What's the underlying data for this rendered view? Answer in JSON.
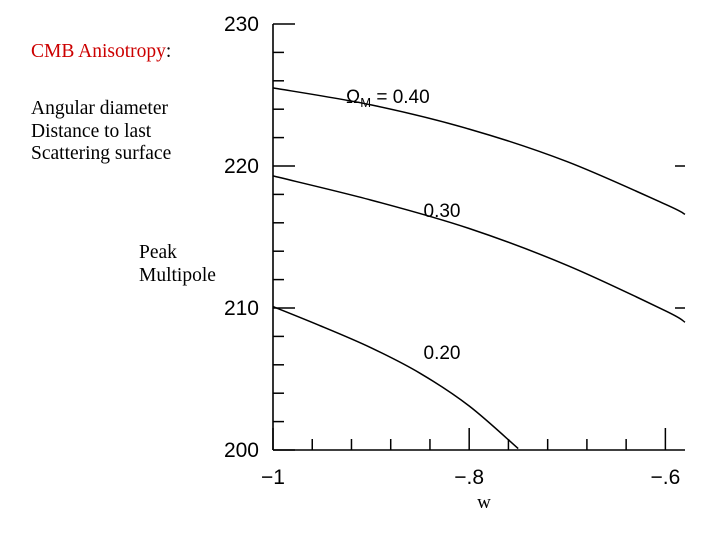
{
  "notes": {
    "cmb_prefix": "CMB Anisotropy",
    "cmb_suffix": ":",
    "angular_lines": [
      "Angular diameter",
      "Distance to last",
      "Scattering surface"
    ],
    "peak_lines": [
      "Peak",
      "Multipole"
    ]
  },
  "colors": {
    "title_red": "#cc0000",
    "ink": "#000000"
  },
  "chart_data": {
    "type": "line",
    "xlabel": "w",
    "ylabel": "",
    "xlim": [
      -1.0,
      -0.58
    ],
    "ylim": [
      200,
      230
    ],
    "x_ticks": [
      -1.0,
      -0.8,
      -0.6
    ],
    "x_tick_labels": [
      "−1",
      "−.8",
      "−.6"
    ],
    "y_ticks": [
      200,
      210,
      220,
      230
    ],
    "y_tick_labels": [
      "200",
      "210",
      "220",
      "230"
    ],
    "grid": false,
    "legend_label": "ΩM  =  0.40",
    "series": [
      {
        "name": "0.40",
        "x": [
          -1.0,
          -0.9,
          -0.8,
          -0.7,
          -0.6,
          -0.58
        ],
        "y": [
          225.5,
          224.3,
          222.6,
          220.3,
          217.3,
          216.6
        ]
      },
      {
        "name": "0.30",
        "x": [
          -1.0,
          -0.9,
          -0.8,
          -0.7,
          -0.6,
          -0.58
        ],
        "y": [
          219.3,
          217.6,
          215.6,
          213.0,
          209.8,
          209.0
        ]
      },
      {
        "name": "0.20",
        "x": [
          -1.0,
          -0.95,
          -0.9,
          -0.85,
          -0.8,
          -0.75
        ],
        "y": [
          210.1,
          208.7,
          207.2,
          205.4,
          203.1,
          200.1
        ]
      }
    ],
    "curve_labels": [
      "",
      "0.30",
      "0.20"
    ]
  }
}
